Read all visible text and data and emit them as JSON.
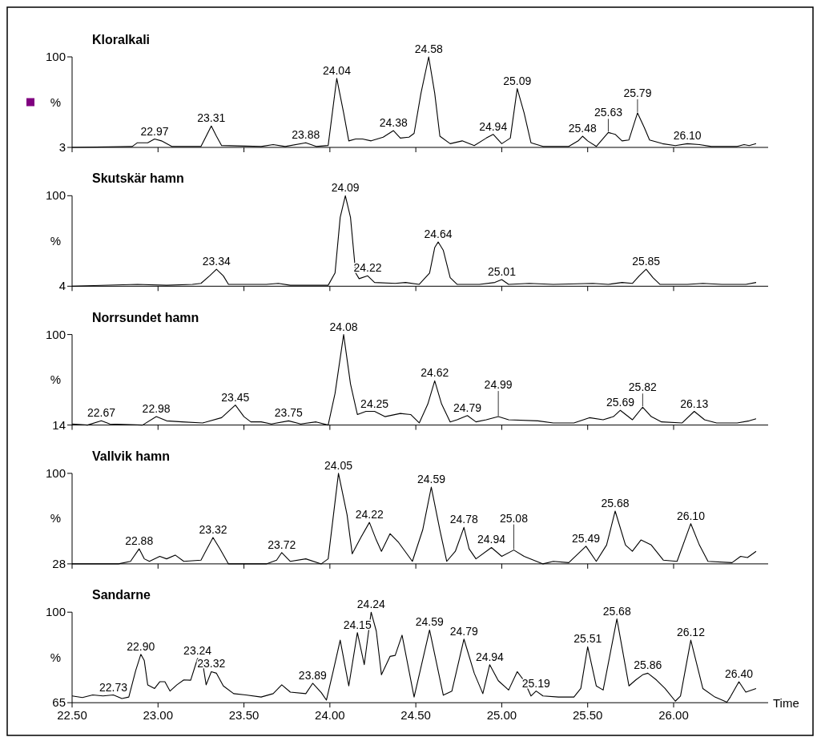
{
  "chart_data": [
    {
      "type": "line",
      "title": "Kloralkali",
      "ylabel": "%",
      "color": "#000000",
      "xlim": [
        22.5,
        26.55
      ],
      "ylim": [
        3,
        100
      ],
      "yticks": [
        3,
        100
      ],
      "tick_labels": "y",
      "xticks": [
        {
          "value": 22.5,
          "label": null
        },
        {
          "value": 23,
          "label": null
        },
        {
          "value": 23.5,
          "label": null
        },
        {
          "value": 24,
          "label": null
        },
        {
          "value": 24.5,
          "label": null
        },
        {
          "value": 25,
          "label": null
        },
        {
          "value": 25.5,
          "label": null
        },
        {
          "value": 26,
          "label": null
        }
      ],
      "x": [
        22.5,
        22.85,
        22.88,
        22.94,
        22.98,
        23.02,
        23.08,
        23.25,
        23.31,
        23.34,
        23.37,
        23.6,
        23.67,
        23.74,
        23.86,
        23.92,
        23.99,
        24.04,
        24.08,
        24.11,
        24.15,
        24.19,
        24.24,
        24.31,
        24.37,
        24.41,
        24.46,
        24.49,
        24.53,
        24.575,
        24.61,
        24.64,
        24.7,
        24.77,
        24.84,
        24.91,
        24.95,
        25.0,
        25.05,
        25.09,
        25.13,
        25.17,
        25.24,
        25.39,
        25.445,
        25.47,
        25.5,
        25.55,
        25.62,
        25.66,
        25.7,
        25.74,
        25.79,
        25.83,
        25.86,
        25.935,
        26.01,
        26.08,
        26.15,
        26.22,
        26.37,
        26.41,
        26.44,
        26.48
      ],
      "values": [
        3,
        4,
        8,
        8,
        12,
        10,
        4,
        4,
        26,
        15,
        5,
        4,
        6,
        4,
        8,
        4,
        5,
        77,
        40,
        10,
        12,
        12,
        10,
        14,
        21,
        13,
        14,
        18,
        61,
        100,
        61,
        15,
        7,
        10,
        5,
        13,
        17,
        7,
        13,
        66,
        40,
        8,
        4,
        4,
        10,
        15,
        10,
        4,
        19,
        17,
        10,
        11,
        40,
        24,
        11,
        7,
        5,
        7,
        6,
        4,
        4,
        6,
        5,
        7
      ],
      "annotations": [
        {
          "text": "22.97",
          "x": 22.98,
          "y": 12
        },
        {
          "text": "23.31",
          "x": 23.31,
          "y": 26
        },
        {
          "text": "23.88",
          "x": 23.86,
          "y": 8
        },
        {
          "text": "24.04",
          "x": 24.04,
          "y": 77
        },
        {
          "text": "24.38",
          "x": 24.37,
          "y": 21
        },
        {
          "text": "24.58",
          "x": 24.575,
          "y": 100
        },
        {
          "text": "24.94",
          "x": 24.95,
          "y": 17
        },
        {
          "text": "25.09",
          "x": 25.09,
          "y": 66
        },
        {
          "text": "25.48",
          "x": 25.47,
          "y": 15
        },
        {
          "text": "25.63",
          "x": 25.62,
          "y": 19
        },
        {
          "text": "25.79",
          "x": 25.79,
          "y": 40
        },
        {
          "text": "26.10",
          "x": 26.08,
          "y": 7
        }
      ]
    },
    {
      "type": "line",
      "title": "Skutskär hamn",
      "ylabel": "%",
      "color": "#000000",
      "xlim": [
        22.5,
        26.55
      ],
      "ylim": [
        4,
        100
      ],
      "yticks": [
        4,
        100
      ],
      "tick_labels": "y",
      "xticks": [
        {
          "value": 22.5,
          "label": null
        },
        {
          "value": 23,
          "label": null
        },
        {
          "value": 23.5,
          "label": null
        },
        {
          "value": 24,
          "label": null
        },
        {
          "value": 24.5,
          "label": null
        },
        {
          "value": 25,
          "label": null
        },
        {
          "value": 25.5,
          "label": null
        },
        {
          "value": 26,
          "label": null
        }
      ],
      "x": [
        22.5,
        22.88,
        23.05,
        23.2,
        23.25,
        23.3,
        23.34,
        23.38,
        23.41,
        23.63,
        23.7,
        23.77,
        23.99,
        24.03,
        24.06,
        24.09,
        24.12,
        24.15,
        24.17,
        24.22,
        24.26,
        24.38,
        24.44,
        24.52,
        24.58,
        24.61,
        24.63,
        24.66,
        24.7,
        24.74,
        24.87,
        24.96,
        25.0,
        25.04,
        25.16,
        25.3,
        25.53,
        25.62,
        25.7,
        25.76,
        25.8,
        25.84,
        25.88,
        25.92,
        26.08,
        26.17,
        26.28,
        26.42,
        26.48
      ],
      "values": [
        4,
        6,
        5,
        6,
        7,
        15,
        22,
        15,
        6,
        6,
        7,
        5,
        5,
        18,
        77,
        100,
        77,
        18,
        12,
        15,
        8,
        7,
        8,
        6,
        18,
        45,
        51,
        42,
        13,
        6,
        6,
        8,
        11,
        6,
        7,
        6,
        7,
        6,
        8,
        7,
        15,
        22,
        13,
        6,
        6,
        7,
        6,
        6,
        8
      ],
      "annotations": [
        {
          "text": "23.34",
          "x": 23.34,
          "y": 22
        },
        {
          "text": "24.09",
          "x": 24.09,
          "y": 100
        },
        {
          "text": "24.22",
          "x": 24.22,
          "y": 15
        },
        {
          "text": "24.64",
          "x": 24.63,
          "y": 51
        },
        {
          "text": "25.01",
          "x": 25.0,
          "y": 11
        },
        {
          "text": "25.85",
          "x": 25.84,
          "y": 22
        }
      ]
    },
    {
      "type": "line",
      "title": "Norrsundet hamn",
      "ylabel": "%",
      "color": "#000000",
      "xlim": [
        22.5,
        26.55
      ],
      "ylim": [
        14,
        100
      ],
      "yticks": [
        14,
        100
      ],
      "tick_labels": "y",
      "xticks": [
        {
          "value": 22.5,
          "label": null
        },
        {
          "value": 23,
          "label": null
        },
        {
          "value": 23.5,
          "label": null
        },
        {
          "value": 24,
          "label": null
        },
        {
          "value": 24.5,
          "label": null
        },
        {
          "value": 25,
          "label": null
        },
        {
          "value": 25.5,
          "label": null
        },
        {
          "value": 26,
          "label": null
        }
      ],
      "x": [
        22.5,
        22.59,
        22.67,
        22.72,
        22.91,
        22.99,
        23.05,
        23.14,
        23.26,
        23.37,
        23.45,
        23.5,
        23.54,
        23.6,
        23.66,
        23.76,
        23.83,
        23.92,
        23.99,
        24.03,
        24.08,
        24.12,
        24.16,
        24.21,
        24.26,
        24.32,
        24.41,
        24.47,
        24.52,
        24.57,
        24.61,
        24.65,
        24.7,
        24.74,
        24.8,
        24.85,
        24.91,
        24.98,
        25.04,
        25.21,
        25.3,
        25.42,
        25.51,
        25.59,
        25.65,
        25.69,
        25.76,
        25.82,
        25.87,
        25.93,
        26.05,
        26.12,
        26.18,
        26.25,
        26.37,
        26.44,
        26.48
      ],
      "values": [
        15,
        14,
        18,
        15,
        14,
        22,
        18,
        17,
        16,
        21,
        33,
        22,
        17,
        17,
        15,
        18,
        15,
        17,
        14,
        44,
        100,
        53,
        24,
        27,
        27,
        22,
        25,
        24,
        16,
        34,
        56,
        34,
        17,
        19,
        23,
        17,
        19,
        22,
        19,
        18,
        16,
        16,
        21,
        19,
        22,
        28,
        19,
        31,
        22,
        17,
        16,
        27,
        19,
        16,
        16,
        18,
        20
      ],
      "annotations": [
        {
          "text": "22.67",
          "x": 22.67,
          "y": 18
        },
        {
          "text": "22.98",
          "x": 22.99,
          "y": 22
        },
        {
          "text": "23.45",
          "x": 23.45,
          "y": 33
        },
        {
          "text": "23.75",
          "x": 23.76,
          "y": 18
        },
        {
          "text": "24.08",
          "x": 24.08,
          "y": 100
        },
        {
          "text": "24.25",
          "x": 24.26,
          "y": 27
        },
        {
          "text": "24.62",
          "x": 24.61,
          "y": 56
        },
        {
          "text": "24.79",
          "x": 24.8,
          "y": 23
        },
        {
          "text": "24.99",
          "x": 24.98,
          "y": 22
        },
        {
          "text": "25.69",
          "x": 25.69,
          "y": 28
        },
        {
          "text": "25.82",
          "x": 25.82,
          "y": 31
        },
        {
          "text": "26.13",
          "x": 26.12,
          "y": 27
        }
      ]
    },
    {
      "type": "line",
      "title": "Vallvik hamn",
      "ylabel": "%",
      "color": "#000000",
      "xlim": [
        22.5,
        26.55
      ],
      "ylim": [
        28,
        100
      ],
      "yticks": [
        28,
        100
      ],
      "tick_labels": "y",
      "xticks": [
        {
          "value": 22.5,
          "label": null
        },
        {
          "value": 23,
          "label": null
        },
        {
          "value": 23.5,
          "label": null
        },
        {
          "value": 24,
          "label": null
        },
        {
          "value": 24.5,
          "label": null
        },
        {
          "value": 25,
          "label": null
        },
        {
          "value": 25.5,
          "label": null
        },
        {
          "value": 26,
          "label": null
        }
      ],
      "x": [
        22.5,
        22.77,
        22.84,
        22.89,
        22.92,
        22.95,
        23.01,
        23.05,
        23.1,
        23.15,
        23.25,
        23.32,
        23.36,
        23.41,
        23.63,
        23.69,
        23.72,
        23.77,
        23.86,
        23.95,
        23.99,
        24.05,
        24.1,
        24.13,
        24.18,
        24.23,
        24.27,
        24.3,
        24.35,
        24.4,
        24.48,
        24.54,
        24.59,
        24.64,
        24.68,
        24.73,
        24.78,
        24.81,
        24.85,
        24.94,
        25.0,
        25.07,
        25.13,
        25.24,
        25.3,
        25.39,
        25.49,
        25.55,
        25.61,
        25.66,
        25.72,
        25.76,
        25.81,
        25.87,
        25.94,
        26.02,
        26.1,
        26.15,
        26.2,
        26.34,
        26.39,
        26.43,
        26.48
      ],
      "values": [
        28,
        28,
        30,
        40,
        32,
        30,
        34,
        32,
        35,
        30,
        31,
        49,
        40,
        28,
        28,
        31,
        37,
        30,
        32,
        28,
        32,
        100,
        67,
        36,
        49,
        61,
        47,
        38,
        52,
        45,
        30,
        55,
        89,
        55,
        30,
        38,
        57,
        40,
        32,
        41,
        34,
        39,
        34,
        28,
        30,
        29,
        42,
        30,
        43,
        70,
        43,
        38,
        47,
        43,
        31,
        30,
        60,
        43,
        30,
        29,
        34,
        33,
        38
      ],
      "annotations": [
        {
          "text": "22.88",
          "x": 22.89,
          "y": 40
        },
        {
          "text": "23.32",
          "x": 23.32,
          "y": 49
        },
        {
          "text": "23.72",
          "x": 23.72,
          "y": 37
        },
        {
          "text": "24.05",
          "x": 24.05,
          "y": 100
        },
        {
          "text": "24.22",
          "x": 24.23,
          "y": 61
        },
        {
          "text": "24.59",
          "x": 24.59,
          "y": 89
        },
        {
          "text": "24.78",
          "x": 24.78,
          "y": 57
        },
        {
          "text": "24.94",
          "x": 24.94,
          "y": 41
        },
        {
          "text": "25.08",
          "x": 25.07,
          "y": 39
        },
        {
          "text": "25.49",
          "x": 25.49,
          "y": 42
        },
        {
          "text": "25.68",
          "x": 25.66,
          "y": 70
        },
        {
          "text": "26.10",
          "x": 26.1,
          "y": 60
        }
      ]
    },
    {
      "type": "line",
      "title": "Sandarne",
      "ylabel": "%",
      "xlabel": "Time",
      "color": "#000000",
      "xlim": [
        22.5,
        26.55
      ],
      "ylim": [
        65,
        100
      ],
      "yticks": [
        65,
        100
      ],
      "xticks": [
        {
          "value": 22.5,
          "label": "22.50"
        },
        {
          "value": 23,
          "label": "23.00"
        },
        {
          "value": 23.5,
          "label": "23.50"
        },
        {
          "value": 24,
          "label": "24.00"
        },
        {
          "value": 24.5,
          "label": "24.50"
        },
        {
          "value": 25,
          "label": "25.00"
        },
        {
          "value": 25.5,
          "label": "25.50"
        },
        {
          "value": 26,
          "label": "26.00"
        }
      ],
      "x": [
        22.5,
        22.56,
        22.62,
        22.68,
        22.74,
        22.79,
        22.83,
        22.87,
        22.9,
        22.92,
        22.94,
        22.98,
        23.01,
        23.04,
        23.07,
        23.11,
        23.15,
        23.19,
        23.23,
        23.26,
        23.28,
        23.31,
        23.34,
        23.38,
        23.44,
        23.51,
        23.6,
        23.67,
        23.72,
        23.77,
        23.86,
        23.9,
        23.95,
        23.98,
        24.02,
        24.06,
        24.11,
        24.16,
        24.2,
        24.24,
        24.27,
        24.3,
        24.35,
        24.38,
        24.42,
        24.49,
        24.58,
        24.66,
        24.71,
        24.78,
        24.84,
        24.89,
        24.93,
        24.98,
        25.04,
        25.09,
        25.13,
        25.17,
        25.2,
        25.24,
        25.33,
        25.42,
        25.46,
        25.5,
        25.55,
        25.59,
        25.67,
        25.74,
        25.78,
        25.82,
        25.85,
        25.9,
        25.95,
        26.01,
        26.04,
        26.1,
        26.17,
        26.24,
        26.31,
        26.33,
        26.38,
        26.42,
        26.48
      ],
      "values": [
        67.6,
        67,
        68,
        67.6,
        68,
        66.6,
        67.2,
        77.4,
        83.7,
        81.3,
        71.9,
        70.5,
        73.1,
        73.1,
        69.5,
        71.9,
        73.8,
        73.7,
        82.1,
        80.3,
        71.9,
        77,
        76.4,
        71.5,
        68.5,
        68,
        67.2,
        68.5,
        71.9,
        69.1,
        68.5,
        72.5,
        68.9,
        66,
        77.4,
        89.2,
        71.5,
        92.1,
        79.7,
        100,
        92.7,
        75.8,
        82.9,
        83.3,
        91.1,
        67.2,
        93.1,
        67.9,
        69.5,
        89.6,
        76.4,
        68.5,
        79.7,
        73.5,
        69.9,
        77,
        73.5,
        67.6,
        69.5,
        67.6,
        67.2,
        67.2,
        70.5,
        86.6,
        71.5,
        69.9,
        97.4,
        71.5,
        73.8,
        75.8,
        76.4,
        73.8,
        70.5,
        65.6,
        67.6,
        89.2,
        70.5,
        67.2,
        65.2,
        67.2,
        73.1,
        69.1,
        70.5
      ],
      "annotations": [
        {
          "text": "22.73",
          "x": 22.74,
          "y": 68
        },
        {
          "text": "22.90",
          "x": 22.9,
          "y": 83.7
        },
        {
          "text": "23.24",
          "x": 23.23,
          "y": 82.1
        },
        {
          "text": "23.32",
          "x": 23.31,
          "y": 77
        },
        {
          "text": "23.89",
          "x": 23.9,
          "y": 72.5
        },
        {
          "text": "24.15",
          "x": 24.16,
          "y": 92.1
        },
        {
          "text": "24.24",
          "x": 24.24,
          "y": 100
        },
        {
          "text": "24.59",
          "x": 24.58,
          "y": 93.1
        },
        {
          "text": "24.79",
          "x": 24.78,
          "y": 89.6
        },
        {
          "text": "24.94",
          "x": 24.93,
          "y": 79.7
        },
        {
          "text": "25.19",
          "x": 25.2,
          "y": 69.5
        },
        {
          "text": "25.51",
          "x": 25.5,
          "y": 86.6
        },
        {
          "text": "25.68",
          "x": 25.67,
          "y": 97.4
        },
        {
          "text": "25.86",
          "x": 25.85,
          "y": 76.4
        },
        {
          "text": "26.12",
          "x": 26.1,
          "y": 89.2
        },
        {
          "text": "26.40",
          "x": 26.38,
          "y": 73.1
        }
      ]
    }
  ]
}
